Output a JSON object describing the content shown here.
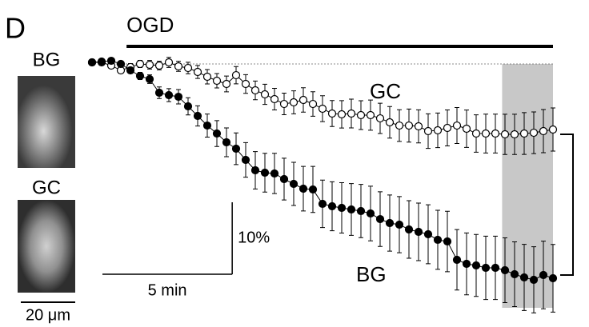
{
  "chart_data": {
    "type": "scatter",
    "panel_label": "D",
    "image_labels": [
      "BG",
      "GC"
    ],
    "image_scale": "20 μm",
    "x": [
      0,
      0.37,
      0.74,
      1.11,
      1.48,
      1.85,
      2.22,
      2.59,
      2.96,
      3.33,
      3.7,
      4.07,
      4.44,
      4.81,
      5.18,
      5.55,
      5.92,
      6.29,
      6.66,
      7.03,
      7.4,
      7.77,
      8.14,
      8.51,
      8.88,
      9.25,
      9.62,
      9.99,
      10.36,
      10.73,
      11.1,
      11.47,
      11.84,
      12.21,
      12.58,
      12.95,
      13.32,
      13.69,
      14.06,
      14.43,
      14.8,
      15.17,
      15.54,
      15.91,
      16.28,
      16.65,
      17.02,
      17.39,
      17.76
    ],
    "series": [
      {
        "name": "GC",
        "color": "#ffffff",
        "values": [
          0.22,
          0.22,
          -0.22,
          -0.89,
          -0.44,
          0,
          -0.11,
          -0.22,
          0.22,
          -0.33,
          -0.56,
          -1.11,
          -1.78,
          -2.33,
          -2.78,
          -1.56,
          -2.78,
          -3.67,
          -4.22,
          -4.89,
          -5.56,
          -5.33,
          -5,
          -5.56,
          -6.22,
          -6.89,
          -7,
          -6.89,
          -7.11,
          -7.11,
          -7.56,
          -8.11,
          -8.56,
          -8.56,
          -8.67,
          -9.33,
          -9.22,
          -8.89,
          -8.56,
          -9,
          -9.67,
          -9.67,
          -9.67,
          -9.78,
          -9.78,
          -9.67,
          -9.56,
          -9.33,
          -9.11
        ],
        "errors": [
          0.2,
          0.2,
          0.3,
          0.4,
          0.5,
          0.5,
          0.6,
          0.6,
          0.7,
          0.7,
          0.8,
          0.9,
          1,
          1,
          1.1,
          1.2,
          1.3,
          1.3,
          1.4,
          1.5,
          1.5,
          1.6,
          1.7,
          1.7,
          1.8,
          1.8,
          1.9,
          2,
          2,
          2.1,
          2.1,
          2.2,
          2.2,
          2.3,
          2.3,
          2.4,
          2.4,
          2.5,
          2.5,
          2.6,
          2.6,
          2.7,
          2.7,
          2.8,
          2.8,
          2.9,
          2.9,
          3,
          3
        ]
      },
      {
        "name": "BG",
        "color": "#000000",
        "values": [
          0.22,
          0.33,
          0.44,
          0,
          -0.89,
          -1.67,
          -2.11,
          -4,
          -4.33,
          -4.56,
          -5.89,
          -7.22,
          -8.56,
          -9.67,
          -10.89,
          -11.78,
          -13.33,
          -14.78,
          -15.11,
          -15.22,
          -16,
          -16.67,
          -17.33,
          -17.44,
          -19.44,
          -19.78,
          -20,
          -20.22,
          -20.44,
          -20.78,
          -21.56,
          -22.11,
          -22.33,
          -23,
          -23.33,
          -23.67,
          -24.44,
          -24.67,
          -27.22,
          -27.78,
          -28,
          -28.33,
          -28.33,
          -28.67,
          -29.22,
          -29.67,
          -30,
          -29.33,
          -29.78
        ],
        "errors": [
          0.2,
          0.2,
          0.2,
          0.3,
          0.4,
          0.5,
          0.6,
          0.8,
          0.9,
          1,
          1.2,
          1.4,
          1.6,
          1.8,
          2,
          2.2,
          2.4,
          2.6,
          2.7,
          2.8,
          2.9,
          3,
          3.1,
          3.2,
          3.3,
          3.4,
          3.5,
          3.6,
          3.7,
          3.8,
          3.8,
          3.9,
          3.9,
          4,
          4,
          4.1,
          4.1,
          4.2,
          4.2,
          4.3,
          4.3,
          4.4,
          4.4,
          4.5,
          4.5,
          4.6,
          4.6,
          4.7,
          4.7
        ]
      }
    ],
    "xlim": [
      0,
      17.76
    ],
    "ylim": [
      -34,
      1
    ],
    "baseline": 0,
    "treatment": {
      "label": "OGD",
      "start": 1.33,
      "end": 17.76
    },
    "shaded": [
      15.8,
      17.76
    ],
    "scale_bars": {
      "x": {
        "value": 5,
        "label": "5 min"
      },
      "y": {
        "value": 10,
        "label": "10%"
      }
    },
    "significance": "*"
  }
}
